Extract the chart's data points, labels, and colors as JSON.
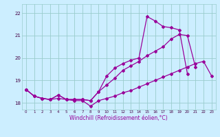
{
  "xlabel": "Windchill (Refroidissement éolien,°C)",
  "x": [
    0,
    1,
    2,
    3,
    4,
    5,
    6,
    7,
    8,
    9,
    10,
    11,
    12,
    13,
    14,
    15,
    16,
    17,
    18,
    19,
    20,
    21,
    22,
    23
  ],
  "line_bottom": [
    18.6,
    18.3,
    18.2,
    18.15,
    18.2,
    18.15,
    18.1,
    18.1,
    17.85,
    18.1,
    18.2,
    18.3,
    18.45,
    18.55,
    18.7,
    18.85,
    19.0,
    19.15,
    19.3,
    19.45,
    19.6,
    19.75,
    19.85,
    19.2
  ],
  "line_mid": [
    18.6,
    18.3,
    18.2,
    18.15,
    18.35,
    18.15,
    18.15,
    18.15,
    18.1,
    18.5,
    18.8,
    19.1,
    19.45,
    19.65,
    19.85,
    20.1,
    20.3,
    20.5,
    20.85,
    21.05,
    21.0,
    19.6,
    null,
    null
  ],
  "line_top": [
    18.6,
    18.3,
    18.2,
    18.15,
    18.35,
    18.15,
    18.15,
    18.15,
    18.1,
    18.5,
    19.2,
    19.55,
    19.75,
    19.9,
    20.0,
    21.85,
    21.65,
    21.4,
    21.35,
    21.25,
    19.3,
    null,
    null,
    null
  ],
  "line_color": "#990099",
  "bg_color": "#cceeff",
  "grid_color": "#99cccc",
  "ylim": [
    17.7,
    22.4
  ],
  "xlim": [
    -0.5,
    23.5
  ],
  "yticks": [
    18,
    19,
    20,
    21,
    22
  ],
  "xticks": [
    0,
    1,
    2,
    3,
    4,
    5,
    6,
    7,
    8,
    9,
    10,
    11,
    12,
    13,
    14,
    15,
    16,
    17,
    18,
    19,
    20,
    21,
    22,
    23
  ]
}
